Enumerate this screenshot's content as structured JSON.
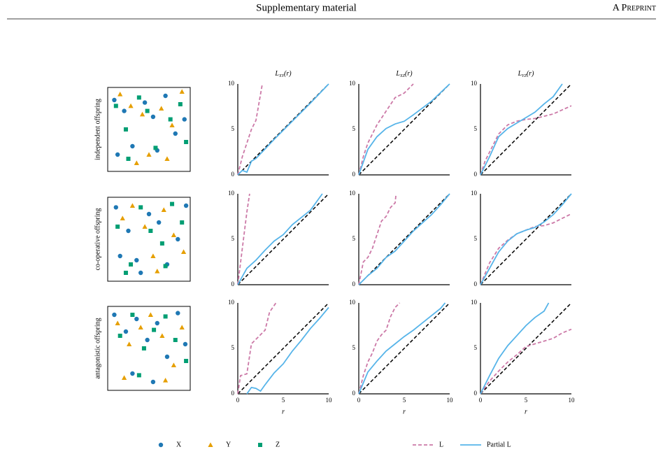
{
  "header": {
    "title": "Supplementary material",
    "right": "A Preprint"
  },
  "legend": {
    "markers": [
      {
        "name": "X",
        "color": "#1f78b4",
        "marker": "circle"
      },
      {
        "name": "Y",
        "color": "#e69f00",
        "marker": "triangle"
      },
      {
        "name": "Z",
        "color": "#009e73",
        "marker": "square"
      }
    ],
    "lines": [
      {
        "name": "L",
        "color": "#cc79a7",
        "dash": true
      },
      {
        "name": "Partial L",
        "color": "#56b4e9",
        "dash": false
      }
    ]
  },
  "chart_data": [
    {
      "type": "scatter",
      "ylabel": "independent offspring",
      "xlim": [
        0,
        1
      ],
      "ylim": [
        0,
        1
      ],
      "series": [
        {
          "color": "#1f78b4",
          "marker": "circle",
          "x": [
            0.08,
            0.2,
            0.3,
            0.45,
            0.55,
            0.7,
            0.82,
            0.93,
            0.6,
            0.12
          ],
          "y": [
            0.85,
            0.72,
            0.3,
            0.82,
            0.65,
            0.9,
            0.45,
            0.62,
            0.25,
            0.2
          ]
        },
        {
          "color": "#e69f00",
          "marker": "triangle",
          "x": [
            0.15,
            0.28,
            0.42,
            0.5,
            0.65,
            0.78,
            0.9,
            0.35,
            0.72
          ],
          "y": [
            0.92,
            0.78,
            0.68,
            0.2,
            0.75,
            0.55,
            0.95,
            0.1,
            0.15
          ]
        },
        {
          "color": "#009e73",
          "marker": "square",
          "x": [
            0.1,
            0.22,
            0.38,
            0.48,
            0.58,
            0.76,
            0.88,
            0.95,
            0.25
          ],
          "y": [
            0.78,
            0.5,
            0.88,
            0.72,
            0.28,
            0.62,
            0.8,
            0.35,
            0.15
          ]
        }
      ]
    },
    {
      "type": "line",
      "title": [
        "L",
        "XY",
        "(r)"
      ],
      "xlim": [
        0,
        10
      ],
      "ylim": [
        0,
        10
      ],
      "yticks": [
        0,
        5,
        10
      ],
      "series": [
        {
          "color": "#000000",
          "dash": true,
          "x": [
            0,
            10
          ],
          "values": [
            0,
            10
          ]
        },
        {
          "color": "#cc79a7",
          "dash": true,
          "x": [
            0,
            0.5,
            1,
            1.5,
            2,
            2.7
          ],
          "values": [
            0,
            2,
            3.5,
            5,
            6,
            10
          ]
        },
        {
          "color": "#56b4e9",
          "dash": false,
          "x": [
            0,
            0.5,
            1,
            1.5,
            2,
            4,
            6,
            8,
            10
          ],
          "values": [
            0,
            0.5,
            0.3,
            1.5,
            1.8,
            3.9,
            5.9,
            7.9,
            10
          ]
        }
      ]
    },
    {
      "type": "line",
      "title": [
        "L",
        "XZ",
        "(r)"
      ],
      "xlim": [
        0,
        10
      ],
      "ylim": [
        0,
        10
      ],
      "yticks": [
        0,
        5,
        10
      ],
      "series": [
        {
          "color": "#000000",
          "dash": true,
          "x": [
            0,
            10
          ],
          "values": [
            0,
            10
          ]
        },
        {
          "color": "#cc79a7",
          "dash": true,
          "x": [
            0,
            0.5,
            1,
            1.5,
            2,
            3,
            4,
            5,
            6
          ],
          "values": [
            0,
            2,
            3.5,
            4.5,
            5.5,
            7,
            8.5,
            9,
            10
          ]
        },
        {
          "color": "#56b4e9",
          "dash": false,
          "x": [
            0,
            1,
            2,
            3,
            4,
            5,
            6,
            8,
            10
          ],
          "values": [
            0,
            2.8,
            4.2,
            5.1,
            5.6,
            5.9,
            6.6,
            8.1,
            10
          ]
        }
      ]
    },
    {
      "type": "line",
      "title": [
        "L",
        "YZ",
        "(r)"
      ],
      "xlim": [
        0,
        10
      ],
      "ylim": [
        0,
        10
      ],
      "yticks": [
        0,
        5,
        10
      ],
      "series": [
        {
          "color": "#000000",
          "dash": true,
          "x": [
            0,
            10
          ],
          "values": [
            0,
            10
          ]
        },
        {
          "color": "#cc79a7",
          "dash": true,
          "x": [
            0,
            0.5,
            1,
            2,
            3,
            4,
            5,
            6,
            8,
            10
          ],
          "values": [
            0,
            1.5,
            2.5,
            4.5,
            5.5,
            5.9,
            6.1,
            6.2,
            6.7,
            7.6
          ]
        },
        {
          "color": "#56b4e9",
          "dash": false,
          "x": [
            0,
            1,
            2,
            3,
            4,
            5,
            6,
            7,
            8,
            9
          ],
          "values": [
            0,
            2,
            4.2,
            5.1,
            5.7,
            6.3,
            6.9,
            7.8,
            8.6,
            10
          ]
        }
      ]
    },
    {
      "type": "scatter",
      "ylabel": "co-operative offspring",
      "xlim": [
        0,
        1
      ],
      "ylim": [
        0,
        1
      ],
      "series": [
        {
          "color": "#1f78b4",
          "marker": "circle",
          "x": [
            0.1,
            0.25,
            0.35,
            0.5,
            0.62,
            0.72,
            0.85,
            0.95,
            0.4,
            0.15
          ],
          "y": [
            0.88,
            0.6,
            0.25,
            0.8,
            0.7,
            0.2,
            0.5,
            0.9,
            0.1,
            0.3
          ]
        },
        {
          "color": "#e69f00",
          "marker": "triangle",
          "x": [
            0.18,
            0.3,
            0.45,
            0.55,
            0.68,
            0.8,
            0.92,
            0.6
          ],
          "y": [
            0.75,
            0.9,
            0.65,
            0.3,
            0.85,
            0.55,
            0.35,
            0.12
          ]
        },
        {
          "color": "#009e73",
          "marker": "square",
          "x": [
            0.12,
            0.28,
            0.4,
            0.52,
            0.66,
            0.78,
            0.9,
            0.22,
            0.7
          ],
          "y": [
            0.65,
            0.2,
            0.88,
            0.6,
            0.45,
            0.92,
            0.7,
            0.1,
            0.18
          ]
        }
      ]
    },
    {
      "type": "line",
      "xlim": [
        0,
        10
      ],
      "ylim": [
        0,
        10
      ],
      "yticks": [
        0,
        5,
        10
      ],
      "series": [
        {
          "color": "#000000",
          "dash": true,
          "x": [
            0,
            10
          ],
          "values": [
            0,
            10
          ]
        },
        {
          "color": "#cc79a7",
          "dash": true,
          "x": [
            0,
            0.5,
            1,
            1.3
          ],
          "values": [
            0,
            4,
            8,
            10
          ]
        },
        {
          "color": "#56b4e9",
          "dash": false,
          "x": [
            0,
            1,
            2,
            3,
            4,
            5,
            6,
            8,
            9.3
          ],
          "values": [
            0,
            1.8,
            2.7,
            3.8,
            4.8,
            5.5,
            6.6,
            8.2,
            10
          ]
        }
      ]
    },
    {
      "type": "line",
      "xlim": [
        0,
        10
      ],
      "ylim": [
        0,
        10
      ],
      "yticks": [
        0,
        5,
        10
      ],
      "series": [
        {
          "color": "#000000",
          "dash": true,
          "x": [
            0,
            10
          ],
          "values": [
            0,
            10
          ]
        },
        {
          "color": "#cc79a7",
          "dash": true,
          "x": [
            0,
            0.5,
            1,
            1.5,
            2,
            2.5,
            3,
            3.5,
            4,
            4.1
          ],
          "values": [
            0,
            2.5,
            3,
            4,
            5.5,
            7,
            7.5,
            8.5,
            9,
            10
          ]
        },
        {
          "color": "#56b4e9",
          "dash": false,
          "x": [
            0,
            1,
            2,
            3,
            4,
            5,
            6,
            7,
            8,
            9,
            10
          ],
          "values": [
            0,
            1,
            1.8,
            3,
            3.7,
            4.8,
            5.9,
            6.8,
            7.7,
            8.8,
            10
          ]
        }
      ]
    },
    {
      "type": "line",
      "xlim": [
        0,
        10
      ],
      "ylim": [
        0,
        10
      ],
      "yticks": [
        0,
        5,
        10
      ],
      "series": [
        {
          "color": "#000000",
          "dash": true,
          "x": [
            0,
            10
          ],
          "values": [
            0,
            10
          ]
        },
        {
          "color": "#cc79a7",
          "dash": true,
          "x": [
            0,
            1,
            2,
            3,
            4,
            5,
            6,
            7,
            8,
            9,
            10
          ],
          "values": [
            0,
            2.4,
            4,
            4.9,
            5.6,
            6,
            6.4,
            6.5,
            6.8,
            7.3,
            7.8
          ]
        },
        {
          "color": "#56b4e9",
          "dash": false,
          "x": [
            0,
            1,
            2,
            3,
            4,
            5,
            6,
            7,
            8,
            9,
            10
          ],
          "values": [
            0,
            1.8,
            3.6,
            4.8,
            5.6,
            6,
            6.3,
            6.9,
            7.7,
            8.8,
            10
          ]
        }
      ]
    },
    {
      "type": "scatter",
      "ylabel": "antagonistic offspring",
      "xlim": [
        0,
        1
      ],
      "ylim": [
        0,
        1
      ],
      "series": [
        {
          "color": "#1f78b4",
          "marker": "circle",
          "x": [
            0.08,
            0.22,
            0.35,
            0.48,
            0.6,
            0.72,
            0.85,
            0.94,
            0.55,
            0.3
          ],
          "y": [
            0.9,
            0.7,
            0.85,
            0.6,
            0.8,
            0.4,
            0.92,
            0.55,
            0.1,
            0.2
          ]
        },
        {
          "color": "#e69f00",
          "marker": "triangle",
          "x": [
            0.12,
            0.26,
            0.4,
            0.52,
            0.66,
            0.8,
            0.9,
            0.2,
            0.7
          ],
          "y": [
            0.8,
            0.55,
            0.75,
            0.9,
            0.65,
            0.3,
            0.75,
            0.15,
            0.12
          ]
        },
        {
          "color": "#009e73",
          "marker": "square",
          "x": [
            0.15,
            0.3,
            0.44,
            0.56,
            0.7,
            0.82,
            0.95,
            0.38
          ],
          "y": [
            0.65,
            0.9,
            0.5,
            0.72,
            0.88,
            0.6,
            0.35,
            0.18
          ]
        }
      ]
    },
    {
      "type": "line",
      "xlabel": "r",
      "xlim": [
        0,
        10
      ],
      "ylim": [
        0,
        10
      ],
      "xticks": [
        0,
        5,
        10
      ],
      "yticks": [
        0,
        5,
        10
      ],
      "series": [
        {
          "color": "#000000",
          "dash": true,
          "x": [
            0,
            10
          ],
          "values": [
            0,
            10
          ]
        },
        {
          "color": "#cc79a7",
          "dash": true,
          "x": [
            0,
            0.3,
            1,
            1.5,
            2,
            2.5,
            3,
            3.5,
            4.2
          ],
          "values": [
            0,
            2,
            2.2,
            5.5,
            6,
            6.5,
            7,
            9,
            10
          ]
        },
        {
          "color": "#56b4e9",
          "dash": false,
          "x": [
            1,
            1.5,
            2,
            2.5,
            3,
            4,
            5,
            6,
            7,
            8,
            9,
            10
          ],
          "values": [
            0,
            0.7,
            0.6,
            0.3,
            1,
            2.3,
            3.3,
            4.7,
            5.9,
            7.2,
            8.3,
            9.5
          ]
        }
      ]
    },
    {
      "type": "line",
      "xlabel": "r",
      "xlim": [
        0,
        10
      ],
      "ylim": [
        0,
        10
      ],
      "xticks": [
        0,
        5,
        10
      ],
      "yticks": [
        0,
        5,
        10
      ],
      "series": [
        {
          "color": "#000000",
          "dash": true,
          "x": [
            0,
            10
          ],
          "values": [
            0,
            10
          ]
        },
        {
          "color": "#cc79a7",
          "dash": true,
          "x": [
            0,
            0.5,
            1,
            1.5,
            2,
            2.5,
            3,
            3.5,
            4,
            4.5
          ],
          "values": [
            0,
            2,
            3.5,
            4.5,
            5.8,
            6.5,
            7,
            8.5,
            9.5,
            10
          ]
        },
        {
          "color": "#56b4e9",
          "dash": false,
          "x": [
            0,
            1,
            2,
            3,
            4,
            5,
            6,
            7,
            8,
            9,
            9.5
          ],
          "values": [
            0,
            2.4,
            3.6,
            4.7,
            5.5,
            6.3,
            7,
            7.8,
            8.6,
            9.4,
            10
          ]
        }
      ]
    },
    {
      "type": "line",
      "xlabel": "r",
      "xlim": [
        0,
        10
      ],
      "ylim": [
        0,
        10
      ],
      "xticks": [
        0,
        5,
        10
      ],
      "yticks": [
        0,
        5,
        10
      ],
      "series": [
        {
          "color": "#000000",
          "dash": true,
          "x": [
            0,
            10
          ],
          "values": [
            0,
            10
          ]
        },
        {
          "color": "#cc79a7",
          "dash": true,
          "x": [
            0,
            1,
            2,
            3,
            4,
            5,
            6,
            7,
            8,
            9,
            10
          ],
          "values": [
            0,
            1.4,
            2.5,
            3.5,
            4.3,
            5.2,
            5.5,
            5.8,
            6.1,
            6.7,
            7.1
          ]
        },
        {
          "color": "#56b4e9",
          "dash": false,
          "x": [
            0,
            1,
            2,
            3,
            4,
            5,
            6,
            7,
            7.5
          ],
          "values": [
            0,
            2,
            3.9,
            5.3,
            6.4,
            7.5,
            8.4,
            9.1,
            10
          ]
        }
      ]
    }
  ]
}
